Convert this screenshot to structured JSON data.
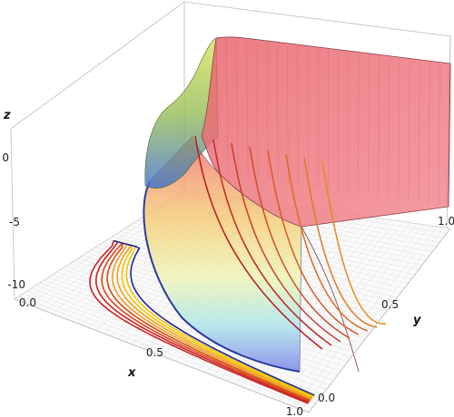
{
  "chart_data": {
    "type": "surface3d",
    "title": "",
    "xlabel": "x",
    "ylabel": "y",
    "zlabel": "z",
    "xlim": [
      0,
      1
    ],
    "ylim": [
      0,
      1
    ],
    "zlim": [
      -11,
      2
    ],
    "x_ticks": [
      "0.0",
      "0.5",
      "1.0"
    ],
    "y_ticks": [
      "0.0",
      "0.5",
      "1.0"
    ],
    "z_ticks": [
      "0",
      "-5",
      "-10"
    ],
    "legend": "none",
    "grid": "base plane mesh",
    "surface": {
      "description_values": {
        "plateau_z": 1.0,
        "min_z": -10
      },
      "colors": [
        "#f06a72",
        "#f6c86a",
        "#f2f6a2",
        "#9fe3e8",
        "#6c74e8"
      ]
    },
    "contour_curves": {
      "count": 9,
      "colors": [
        "#cc2222",
        "#d84a1a",
        "#f0a020",
        "#f5c400",
        "#1a2a9a"
      ]
    }
  }
}
